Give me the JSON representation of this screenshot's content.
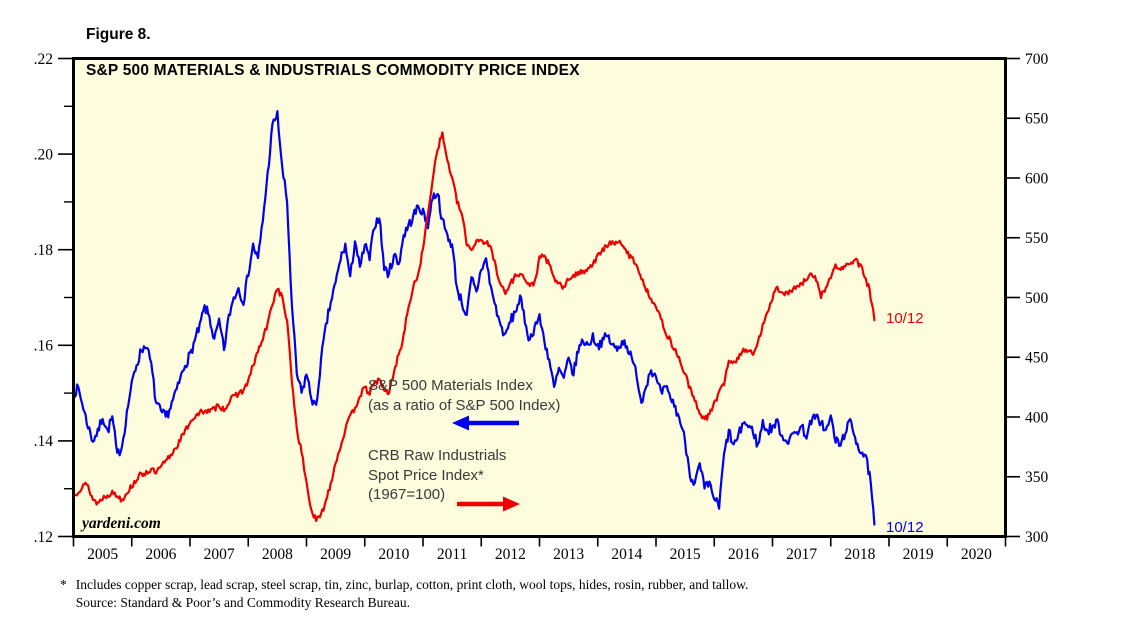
{
  "figure_label": "Figure 8.",
  "title": "S&P 500 MATERIALS & INDUSTRIALS COMMODITY PRICE INDEX",
  "watermark": "yardeni.com",
  "colors": {
    "series1_blue": "#0000EE",
    "series2_red": "#EE0000",
    "plot_background": "#FDFCDC",
    "frame": "#000000",
    "annotation_text": "#3a3a3a"
  },
  "annotations": {
    "series1": {
      "line1": "S&P 500 Materials Index",
      "line2": "(as a ratio of S&P 500 Index)",
      "end_label": "10/12"
    },
    "series2": {
      "line1": "CRB Raw Industrials",
      "line2": "Spot Price Index*",
      "line3": "(1967=100)",
      "end_label": "10/12"
    }
  },
  "footnote": {
    "marker": "*",
    "line1": "Includes copper scrap, lead scrap, steel scrap, tin, zinc, burlap, cotton, print cloth, wool tops, hides, rosin, rubber, and tallow.",
    "line2": "Source: Standard & Poor’s and Commodity Research Bureau."
  },
  "chart_data": {
    "type": "line",
    "title": "S&P 500 MATERIALS & INDUSTRIALS COMMODITY PRICE INDEX",
    "x_axis": {
      "years": [
        "2005",
        "2006",
        "2007",
        "2008",
        "2009",
        "2010",
        "2011",
        "2012",
        "2013",
        "2014",
        "2015",
        "2016",
        "2017",
        "2018",
        "2019",
        "2020"
      ],
      "range": [
        2005,
        2021
      ]
    },
    "left_axis": {
      "ticks": [
        ".22",
        ".20",
        ".18",
        ".16",
        ".14",
        ".12"
      ],
      "tick_values": [
        0.22,
        0.2,
        0.18,
        0.16,
        0.14,
        0.12
      ],
      "range": [
        0.12,
        0.22
      ],
      "minor_tick_step": 0.01
    },
    "right_axis": {
      "ticks": [
        "700",
        "650",
        "600",
        "550",
        "500",
        "450",
        "400",
        "350",
        "300"
      ],
      "tick_values": [
        700,
        650,
        600,
        550,
        500,
        450,
        400,
        350,
        300
      ],
      "range": [
        300,
        700
      ]
    },
    "series": [
      {
        "name": "S&P 500 Materials Index (as a ratio of S&P 500 Index)",
        "axis": "left",
        "color": "#0000EE",
        "start": "2005-01",
        "frequency": "monthly",
        "end_label": "10/12",
        "values": [
          0.15,
          0.151,
          0.147,
          0.143,
          0.14,
          0.142,
          0.145,
          0.142,
          0.145,
          0.137,
          0.139,
          0.146,
          0.152,
          0.156,
          0.159,
          0.16,
          0.156,
          0.148,
          0.146,
          0.145,
          0.147,
          0.15,
          0.153,
          0.156,
          0.158,
          0.161,
          0.164,
          0.168,
          0.166,
          0.161,
          0.165,
          0.159,
          0.166,
          0.17,
          0.172,
          0.169,
          0.175,
          0.181,
          0.178,
          0.186,
          0.196,
          0.206,
          0.2085,
          0.197,
          0.19,
          0.168,
          0.154,
          0.15,
          0.154,
          0.149,
          0.147,
          0.157,
          0.164,
          0.169,
          0.173,
          0.178,
          0.181,
          0.174,
          0.182,
          0.176,
          0.181,
          0.178,
          0.185,
          0.187,
          0.176,
          0.175,
          0.179,
          0.177,
          0.183,
          0.185,
          0.187,
          0.189,
          0.188,
          0.185,
          0.191,
          0.192,
          0.186,
          0.183,
          0.181,
          0.172,
          0.169,
          0.166,
          0.174,
          0.171,
          0.176,
          0.178,
          0.172,
          0.168,
          0.164,
          0.162,
          0.165,
          0.167,
          0.17,
          0.165,
          0.161,
          0.164,
          0.166,
          0.161,
          0.157,
          0.151,
          0.155,
          0.153,
          0.157,
          0.154,
          0.159,
          0.161,
          0.16,
          0.162,
          0.16,
          0.161,
          0.162,
          0.16,
          0.159,
          0.161,
          0.16,
          0.157,
          0.154,
          0.148,
          0.152,
          0.155,
          0.153,
          0.15,
          0.151,
          0.149,
          0.147,
          0.144,
          0.14,
          0.133,
          0.131,
          0.135,
          0.13,
          0.131,
          0.128,
          0.126,
          0.137,
          0.142,
          0.139,
          0.141,
          0.144,
          0.143,
          0.142,
          0.139,
          0.144,
          0.142,
          0.143,
          0.144,
          0.141,
          0.14,
          0.141,
          0.142,
          0.143,
          0.141,
          0.144,
          0.145,
          0.144,
          0.142,
          0.145,
          0.14,
          0.139,
          0.142,
          0.144,
          0.141,
          0.138,
          0.137,
          0.133,
          0.1225
        ]
      },
      {
        "name": "CRB Raw Industrials Spot Price Index (1967=100)",
        "axis": "right",
        "color": "#EE0000",
        "start": "2005-01",
        "frequency": "monthly",
        "end_label": "10/12",
        "values": [
          333,
          338,
          344,
          342,
          331,
          328,
          332,
          335,
          337,
          334,
          331,
          337,
          342,
          348,
          352,
          354,
          356,
          353,
          358,
          363,
          368,
          374,
          381,
          388,
          396,
          400,
          403,
          406,
          404,
          407,
          410,
          406,
          412,
          417,
          420,
          422,
          430,
          443,
          455,
          465,
          478,
          495,
          508,
          500,
          480,
          430,
          390,
          370,
          345,
          322,
          313,
          318,
          330,
          345,
          362,
          375,
          390,
          400,
          408,
          418,
          424,
          420,
          428,
          432,
          422,
          420,
          438,
          452,
          468,
          492,
          508,
          520,
          540,
          570,
          600,
          625,
          637,
          615,
          600,
          580,
          570,
          545,
          540,
          548,
          548,
          546,
          541,
          526,
          511,
          503,
          512,
          518,
          521,
          515,
          509,
          513,
          533,
          535,
          527,
          516,
          512,
          508,
          515,
          519,
          520,
          522,
          525,
          528,
          535,
          540,
          543,
          546,
          547,
          543,
          538,
          533,
          528,
          516,
          506,
          500,
          492,
          482,
          471,
          463,
          456,
          446,
          436,
          424,
          413,
          404,
          398,
          402,
          412,
          420,
          428,
          448,
          445,
          450,
          457,
          455,
          452,
          462,
          478,
          489,
          500,
          508,
          505,
          503,
          506,
          509,
          511,
          515,
          519,
          515,
          501,
          509,
          516,
          527,
          523,
          526,
          529,
          531,
          527,
          518,
          506,
          481
        ]
      }
    ]
  }
}
